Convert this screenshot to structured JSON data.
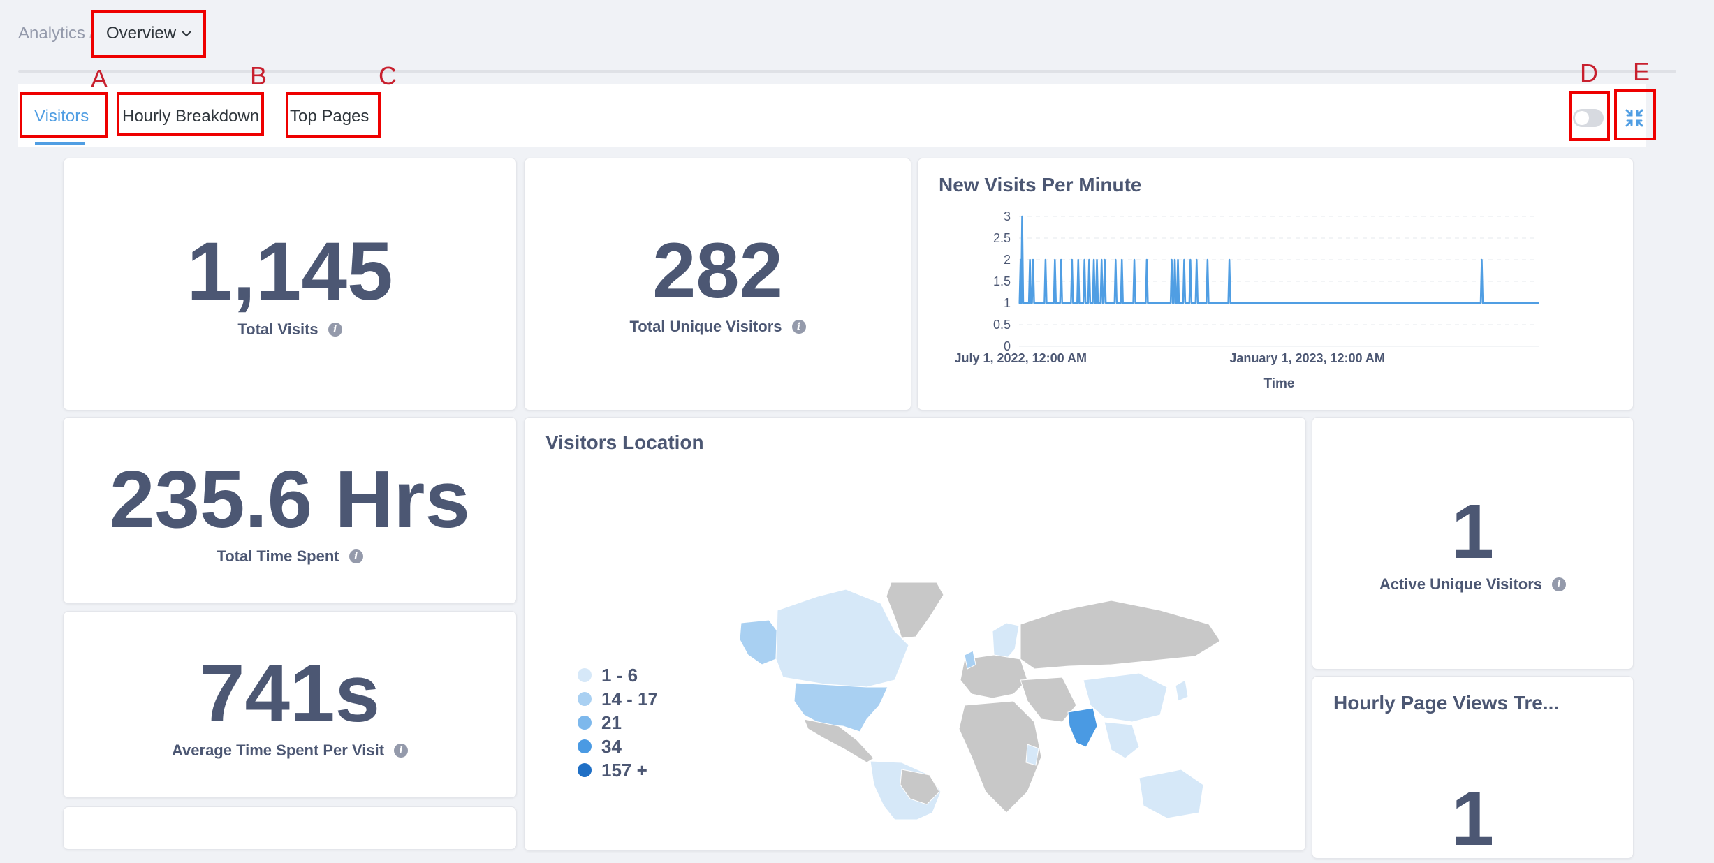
{
  "breadcrumb": {
    "root": "Analytics",
    "separator": "/",
    "current": "Overview"
  },
  "tabs": [
    {
      "label": "Visitors",
      "active": true
    },
    {
      "label": "Hourly Breakdown",
      "active": false
    },
    {
      "label": "Top Pages",
      "active": false
    }
  ],
  "annotations": [
    "A",
    "B",
    "C",
    "D",
    "E"
  ],
  "controls": {
    "toggle_on": false,
    "fullscreen_icon": "fullscreen-icon"
  },
  "metrics": {
    "total_visits": {
      "value": "1,145",
      "label": "Total Visits"
    },
    "total_unique_visitors": {
      "value": "282",
      "label": "Total Unique Visitors"
    },
    "total_time_spent": {
      "value": "235.6 Hrs",
      "label": "Total Time Spent"
    },
    "avg_time_per_visit": {
      "value": "741s",
      "label": "Average Time Spent Per Visit"
    },
    "active_unique_visitors": {
      "value": "1",
      "label": "Active Unique Visitors"
    },
    "hourly_page_views": {
      "value": "1",
      "title": "Hourly Page Views Tre..."
    }
  },
  "chart_data": {
    "type": "line",
    "title": "New Visits Per Minute",
    "xlabel": "Time",
    "ylabel": "",
    "ylim": [
      0,
      3
    ],
    "yticks": [
      "0",
      "0.5",
      "1",
      "1.5",
      "2",
      "2.5",
      "3"
    ],
    "xticks": [
      "July 1, 2022, 12:00 AM",
      "January 1, 2023, 12:00 AM"
    ],
    "xlim": [
      "2022-06-30",
      "2023-05-30"
    ],
    "color": "#509ee3",
    "baseline": 1,
    "spikes": [
      {
        "date": "2022-07-01",
        "value": 2
      },
      {
        "date": "2022-07-02",
        "value": 3
      },
      {
        "date": "2022-07-07",
        "value": 2
      },
      {
        "date": "2022-07-09",
        "value": 2
      },
      {
        "date": "2022-07-17",
        "value": 2
      },
      {
        "date": "2022-07-23",
        "value": 2
      },
      {
        "date": "2022-07-27",
        "value": 2
      },
      {
        "date": "2022-08-03",
        "value": 2
      },
      {
        "date": "2022-08-07",
        "value": 2
      },
      {
        "date": "2022-08-11",
        "value": 2
      },
      {
        "date": "2022-08-14",
        "value": 2
      },
      {
        "date": "2022-08-17",
        "value": 2
      },
      {
        "date": "2022-08-19",
        "value": 2
      },
      {
        "date": "2022-08-22",
        "value": 2
      },
      {
        "date": "2022-08-24",
        "value": 2
      },
      {
        "date": "2022-08-31",
        "value": 2
      },
      {
        "date": "2022-09-04",
        "value": 2
      },
      {
        "date": "2022-09-12",
        "value": 2
      },
      {
        "date": "2022-09-20",
        "value": 2
      },
      {
        "date": "2022-10-06",
        "value": 2
      },
      {
        "date": "2022-10-08",
        "value": 2
      },
      {
        "date": "2022-10-10",
        "value": 2
      },
      {
        "date": "2022-10-14",
        "value": 2
      },
      {
        "date": "2022-10-18",
        "value": 2
      },
      {
        "date": "2022-10-22",
        "value": 2
      },
      {
        "date": "2022-10-29",
        "value": 2
      },
      {
        "date": "2022-11-12",
        "value": 2
      },
      {
        "date": "2023-04-23",
        "value": 2
      }
    ]
  },
  "map": {
    "title": "Visitors Location",
    "legend": [
      {
        "label": "1 - 6",
        "color": "#d6e8f8"
      },
      {
        "label": "14 - 17",
        "color": "#a9d0f2"
      },
      {
        "label": "21",
        "color": "#7db8ec"
      },
      {
        "label": "34",
        "color": "#4a9ae3"
      },
      {
        "label": "157 +",
        "color": "#1f6fc5"
      }
    ]
  }
}
